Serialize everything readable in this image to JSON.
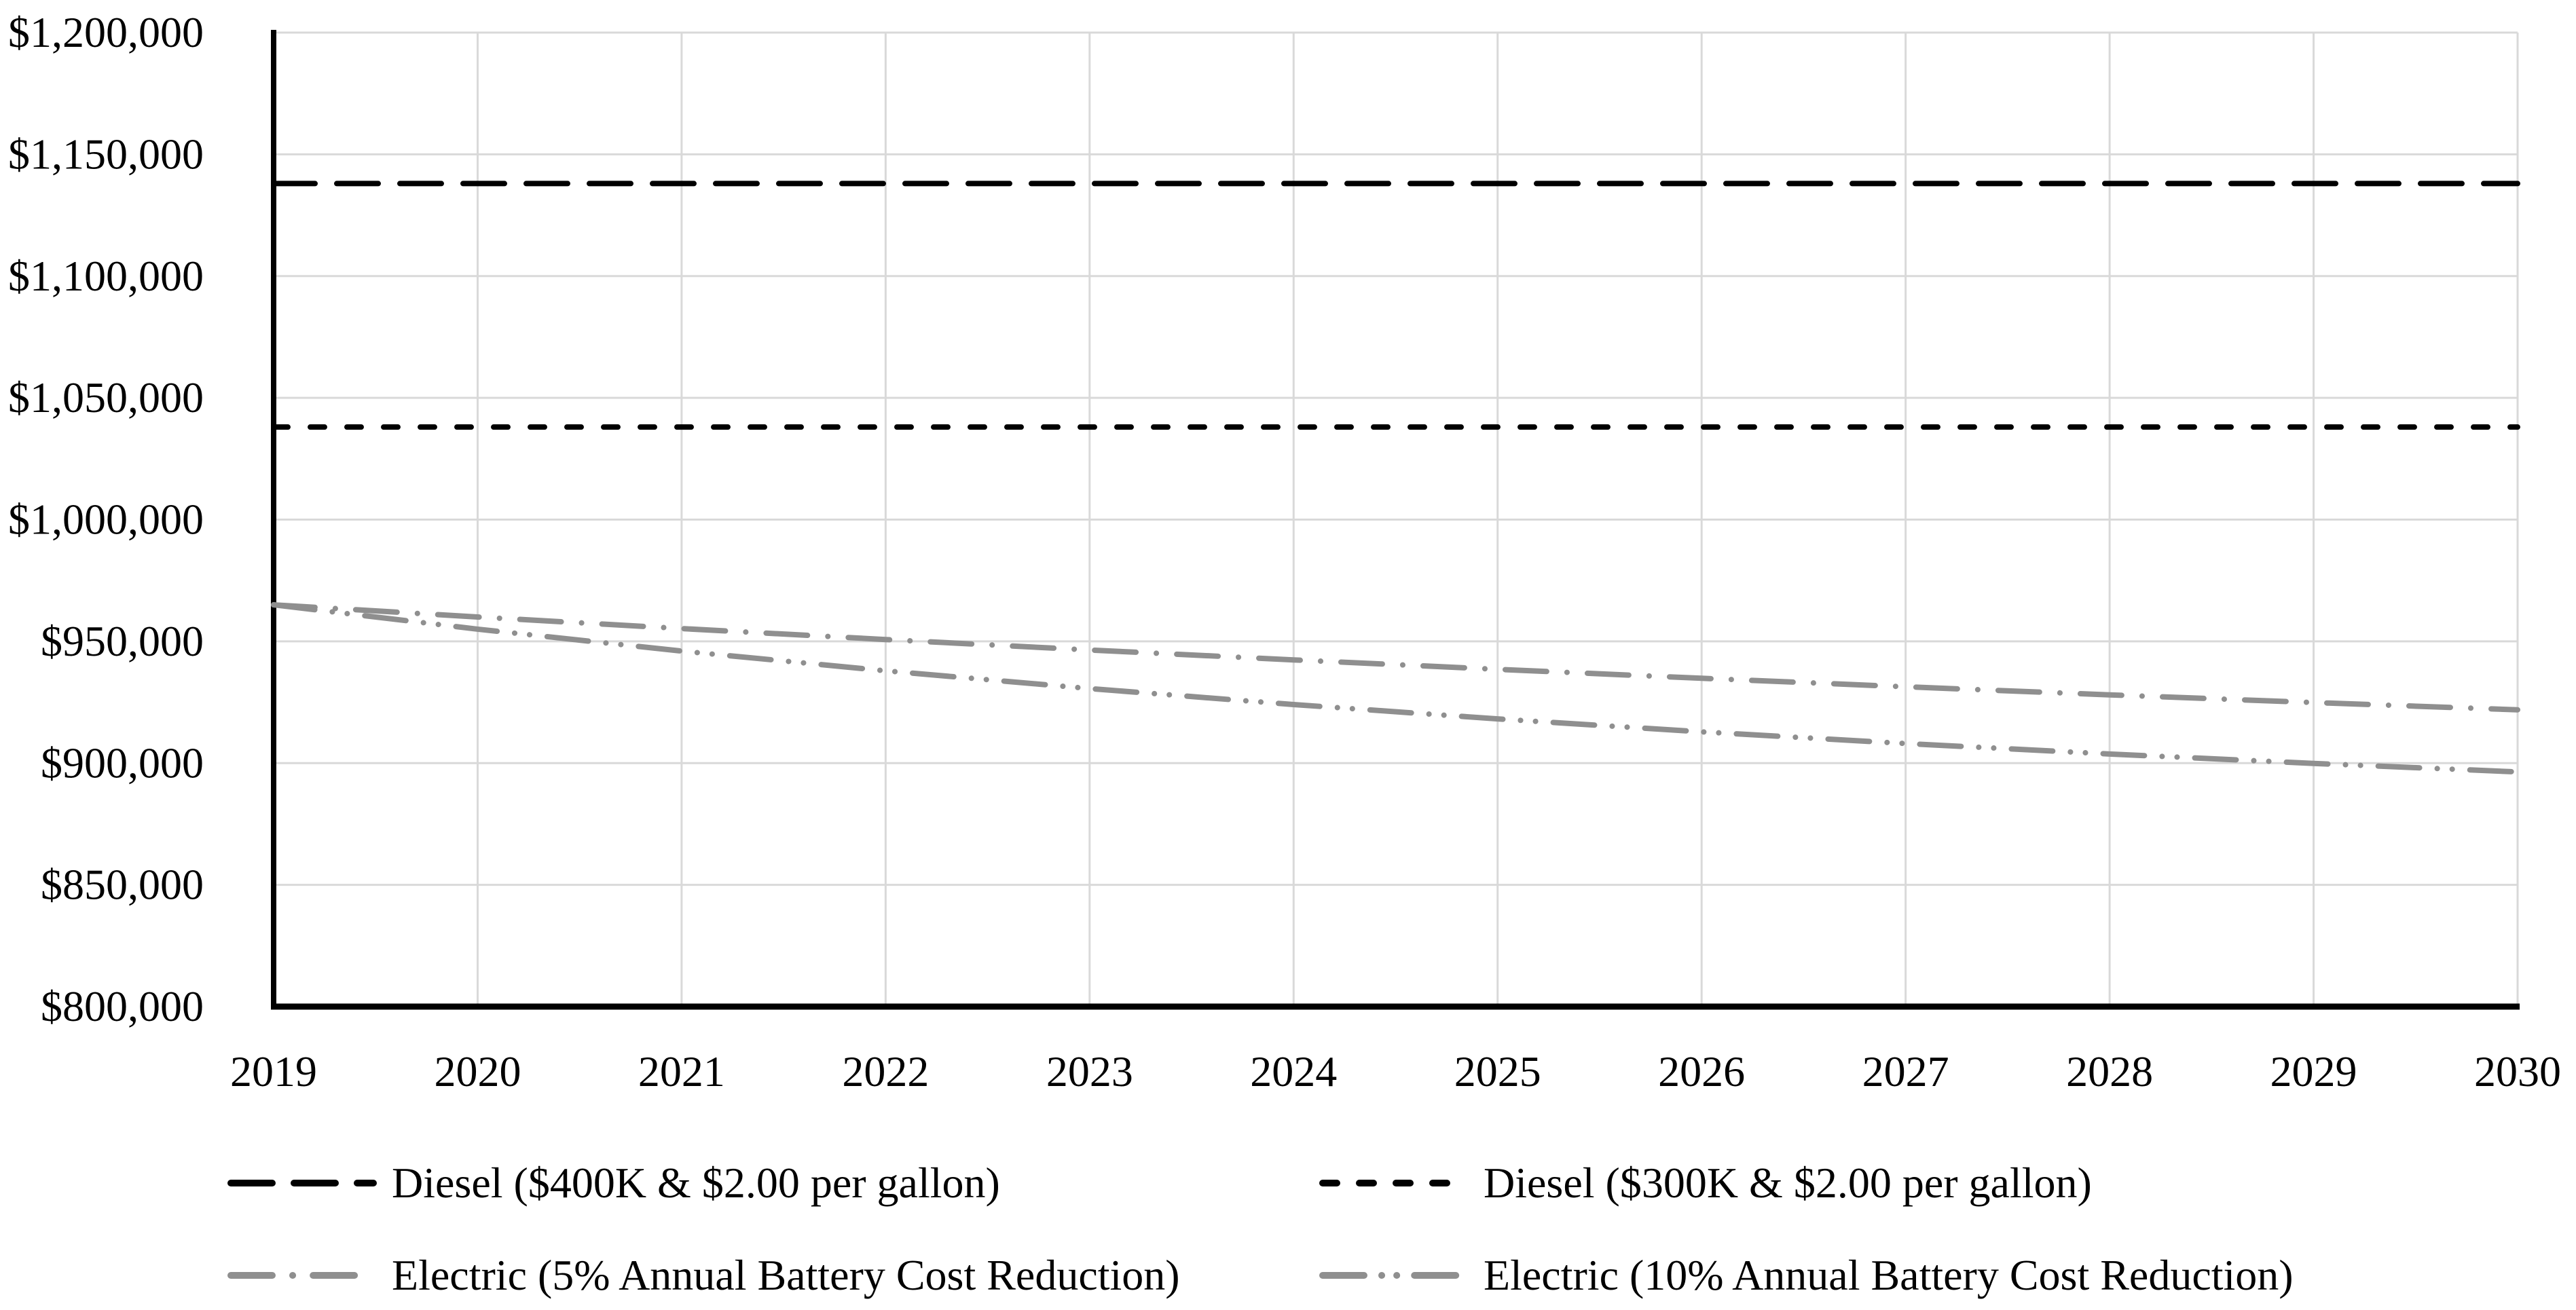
{
  "chart_data": {
    "type": "line",
    "title": "",
    "xlabel": "",
    "ylabel": "",
    "x": [
      2019,
      2020,
      2021,
      2022,
      2023,
      2024,
      2025,
      2026,
      2027,
      2028,
      2029,
      2030
    ],
    "x_ticks": [
      "2019",
      "2020",
      "2021",
      "2022",
      "2023",
      "2024",
      "2025",
      "2026",
      "2027",
      "2028",
      "2029",
      "2030"
    ],
    "y_axis": {
      "min": 800000,
      "max": 1200000,
      "step": 50000,
      "tick_labels": [
        "$800,000",
        "$850,000",
        "$900,000",
        "$950,000",
        "$1,000,000",
        "$1,050,000",
        "$1,100,000",
        "$1,150,000",
        "$1,200,000"
      ]
    },
    "grid": {
      "horizontal": true,
      "vertical": true
    },
    "legend": {
      "position": "bottom",
      "columns": 2,
      "rows": 2
    },
    "series": [
      {
        "id": "diesel-400k",
        "name": "Diesel ($400K & $2.00 per gallon)",
        "color": "#000000",
        "dash": "long-dash",
        "values": [
          1138000,
          1138000,
          1138000,
          1138000,
          1138000,
          1138000,
          1138000,
          1138000,
          1138000,
          1138000,
          1138000,
          1138000
        ]
      },
      {
        "id": "diesel-300k",
        "name": "Diesel ($300K & $2.00 per gallon)",
        "color": "#000000",
        "dash": "short-dash",
        "values": [
          1038000,
          1038000,
          1038000,
          1038000,
          1038000,
          1038000,
          1038000,
          1038000,
          1038000,
          1038000,
          1038000,
          1038000
        ]
      },
      {
        "id": "electric-5pct",
        "name": "Electric (5% Annual Battery Cost Reduction)",
        "color": "#8F8F8F",
        "dash": "dash-dot",
        "values": [
          965000,
          960000,
          955250,
          950738,
          946451,
          942378,
          938509,
          934834,
          931342,
          928025,
          924874,
          921880
        ]
      },
      {
        "id": "electric-10pct",
        "name": "Electric (10% Annual Battery Cost Reduction)",
        "color": "#8F8F8F",
        "dash": "dash-dot-dot",
        "values": [
          965000,
          955000,
          946000,
          937900,
          930610,
          924049,
          918144,
          912830,
          908047,
          903742,
          899868,
          896381
        ]
      }
    ]
  },
  "colors": {
    "background": "#FFFFFF",
    "gridline": "#D9D9D9",
    "axis": "#000000",
    "text": "#000000",
    "diesel": "#000000",
    "electric": "#8F8F8F"
  }
}
